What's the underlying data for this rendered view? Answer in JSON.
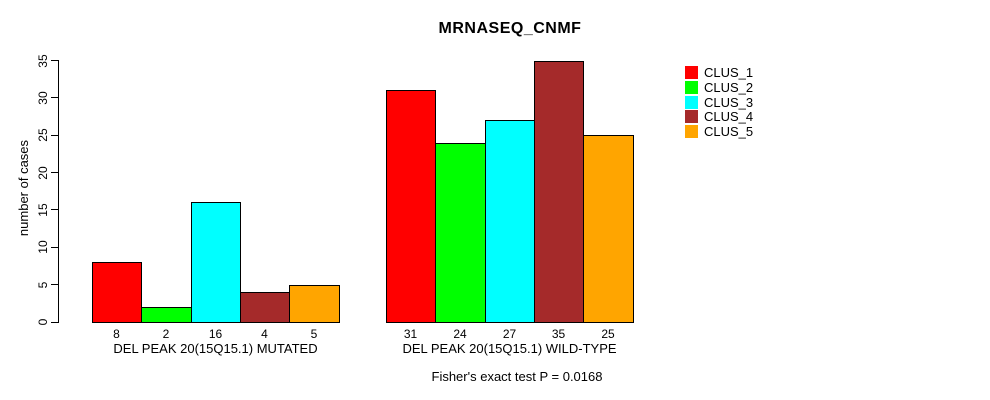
{
  "chart_data": {
    "type": "bar",
    "title": "MRNASEQ_CNMF",
    "ylabel": "number of cases",
    "xlabel": "",
    "ylim": [
      0,
      35
    ],
    "yticks": [
      0,
      5,
      10,
      15,
      20,
      25,
      30,
      35
    ],
    "grid": false,
    "legend_position": "right",
    "legend": [
      "CLUS_1",
      "CLUS_2",
      "CLUS_3",
      "CLUS_4",
      "CLUS_5"
    ],
    "colors": [
      "#FF0000",
      "#00FF00",
      "#00FFFF",
      "#A52A2A",
      "#FFA500"
    ],
    "groups": [
      {
        "label": "DEL PEAK 20(15Q15.1) MUTATED",
        "values": [
          8,
          2,
          16,
          4,
          5
        ]
      },
      {
        "label": "DEL PEAK 20(15Q15.1) WILD-TYPE",
        "values": [
          31,
          24,
          27,
          35,
          25
        ]
      }
    ],
    "footnote": "Fisher's exact test P = 0.0168"
  }
}
